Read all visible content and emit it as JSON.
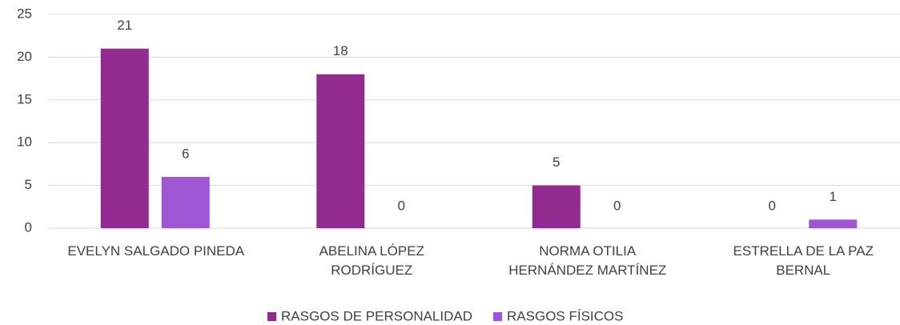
{
  "chart_data": {
    "type": "bar",
    "categories": [
      "EVELYN SALGADO PINEDA",
      "ABELINA LÓPEZ RODRÍGUEZ",
      "NORMA OTILIA HERNÁNDEZ MARTÍNEZ",
      "ESTRELLA DE LA PAZ BERNAL"
    ],
    "series": [
      {
        "name": "RASGOS DE PERSONALIDAD",
        "color": "#922b8f",
        "values": [
          21,
          18,
          5,
          0
        ]
      },
      {
        "name": "RASGOS FÍSICOS",
        "color": "#9e56d4",
        "values": [
          6,
          0,
          0,
          1
        ]
      }
    ],
    "ylim": [
      0,
      25
    ],
    "yticks": [
      0,
      5,
      10,
      15,
      20,
      25
    ],
    "grid": true,
    "legend": "bottom"
  }
}
